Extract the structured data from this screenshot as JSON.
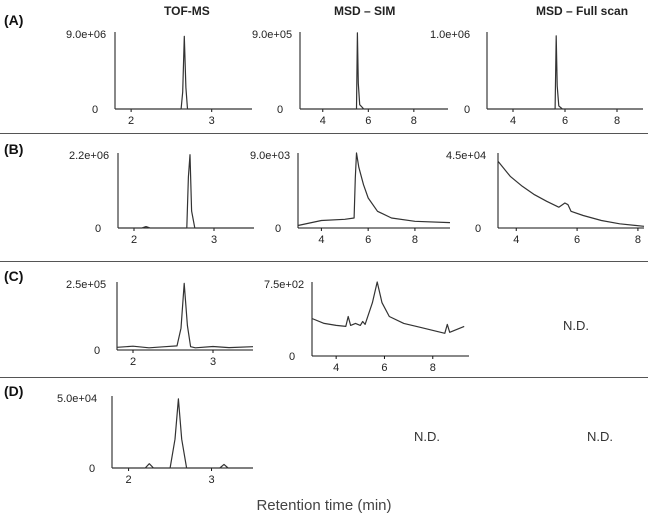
{
  "figure": {
    "column_headers": [
      "TOF-MS",
      "MSD – SIM",
      "MSD – Full scan"
    ],
    "row_labels": [
      "(A)",
      "(B)",
      "(C)",
      "(D)"
    ],
    "not_detected_label": "N.D.",
    "x_axis_label": "Retention time (min)",
    "line_color": "#333333",
    "axis_color": "#111111"
  },
  "chart_data": [
    {
      "id": "A-TOF",
      "type": "line",
      "row": "(A)",
      "column": "TOF-MS",
      "ymax_label": "9.0e+06",
      "ylim": [
        0,
        9000000
      ],
      "xlim": [
        1.8,
        3.5
      ],
      "xticks": [
        2,
        3
      ],
      "x": [
        1.8,
        2.5,
        2.62,
        2.64,
        2.66,
        2.68,
        2.7,
        2.75,
        3.5
      ],
      "y": [
        0,
        0,
        0,
        2000000,
        8500000,
        2500000,
        0,
        0,
        0
      ]
    },
    {
      "id": "A-SIM",
      "type": "line",
      "row": "(A)",
      "column": "MSD – SIM",
      "ymax_label": "9.0e+05",
      "ylim": [
        0,
        900000
      ],
      "xlim": [
        3,
        9.5
      ],
      "xticks": [
        4,
        6,
        8
      ],
      "x": [
        3,
        5.4,
        5.48,
        5.52,
        5.56,
        5.62,
        5.8,
        9.5
      ],
      "y": [
        0,
        0,
        0,
        890000,
        300000,
        50000,
        0,
        0
      ]
    },
    {
      "id": "A-FULL",
      "type": "line",
      "row": "(A)",
      "column": "MSD – Full scan",
      "ymax_label": "1.0e+06",
      "ylim": [
        0,
        1000000
      ],
      "xlim": [
        3,
        9
      ],
      "xticks": [
        4,
        6,
        8
      ],
      "x": [
        3,
        5.5,
        5.62,
        5.66,
        5.7,
        5.76,
        5.9,
        9
      ],
      "y": [
        0,
        0,
        0,
        950000,
        300000,
        40000,
        0,
        0
      ]
    },
    {
      "id": "B-TOF",
      "type": "line",
      "row": "(B)",
      "column": "TOF-MS",
      "ymax_label": "2.2e+06",
      "ylim": [
        0,
        2200000
      ],
      "xlim": [
        1.8,
        3.5
      ],
      "xticks": [
        2,
        3
      ],
      "x": [
        1.8,
        2.1,
        2.15,
        2.2,
        2.6,
        2.66,
        2.68,
        2.7,
        2.72,
        2.76,
        3.5
      ],
      "y": [
        0,
        0,
        40000,
        0,
        0,
        0,
        1500000,
        2150000,
        500000,
        0,
        0
      ]
    },
    {
      "id": "B-SIM",
      "type": "line",
      "row": "(B)",
      "column": "MSD – SIM",
      "ymax_label": "9.0e+03",
      "ylim": [
        0,
        9000
      ],
      "xlim": [
        3,
        9.5
      ],
      "xticks": [
        4,
        6,
        8
      ],
      "x": [
        3,
        4,
        5,
        5.4,
        5.45,
        5.5,
        5.6,
        5.8,
        6,
        6.4,
        7,
        8,
        9.5
      ],
      "y": [
        300,
        900,
        1050,
        1200,
        6000,
        9000,
        7300,
        5200,
        3600,
        2000,
        1200,
        800,
        650
      ]
    },
    {
      "id": "B-FULL",
      "type": "line",
      "row": "(B)",
      "column": "MSD – Full scan",
      "ymax_label": "4.5e+04",
      "ylim": [
        0,
        45000
      ],
      "xlim": [
        3.4,
        8.2
      ],
      "xticks": [
        4,
        6,
        8
      ],
      "x": [
        3.4,
        3.8,
        4.2,
        4.6,
        5,
        5.4,
        5.6,
        5.7,
        5.8,
        6.2,
        6.8,
        7.4,
        8.2
      ],
      "y": [
        40000,
        31000,
        25000,
        20000,
        16000,
        12500,
        15000,
        14000,
        10000,
        7500,
        4500,
        2500,
        1000
      ]
    },
    {
      "id": "C-TOF",
      "type": "line",
      "row": "(C)",
      "column": "TOF-MS",
      "ymax_label": "2.5e+05",
      "ylim": [
        0,
        250000
      ],
      "xlim": [
        1.8,
        3.5
      ],
      "xticks": [
        2,
        3
      ],
      "x": [
        1.8,
        2,
        2.2,
        2.4,
        2.55,
        2.6,
        2.64,
        2.68,
        2.72,
        2.78,
        3,
        3.2,
        3.5
      ],
      "y": [
        10000,
        14000,
        8000,
        12000,
        15000,
        80000,
        245000,
        90000,
        12000,
        8000,
        13000,
        9000,
        12000
      ]
    },
    {
      "id": "C-SIM",
      "type": "line",
      "row": "(C)",
      "column": "MSD – SIM",
      "ymax_label": "7.5e+02",
      "ylim": [
        0,
        750
      ],
      "xlim": [
        3,
        9.5
      ],
      "xticks": [
        4,
        6,
        8
      ],
      "x": [
        3,
        3.5,
        4,
        4.4,
        4.5,
        4.6,
        4.8,
        5,
        5.1,
        5.2,
        5.5,
        5.7,
        5.9,
        6.2,
        6.8,
        7.5,
        8.5,
        8.6,
        8.7,
        9.3
      ],
      "y": [
        380,
        330,
        310,
        300,
        400,
        310,
        330,
        310,
        350,
        320,
        540,
        750,
        540,
        400,
        330,
        290,
        230,
        320,
        240,
        300
      ]
    },
    {
      "id": "D-TOF",
      "type": "line",
      "row": "(D)",
      "column": "TOF-MS",
      "ymax_label": "5.0e+04",
      "ylim": [
        0,
        50000
      ],
      "xlim": [
        1.8,
        3.5
      ],
      "xticks": [
        2,
        3
      ],
      "x": [
        1.8,
        2.2,
        2.25,
        2.3,
        2.5,
        2.56,
        2.6,
        2.64,
        2.7,
        2.8,
        3.1,
        3.15,
        3.2,
        3.5
      ],
      "y": [
        0,
        0,
        3000,
        0,
        0,
        20000,
        48000,
        20000,
        0,
        0,
        0,
        2500,
        0,
        0
      ]
    }
  ]
}
